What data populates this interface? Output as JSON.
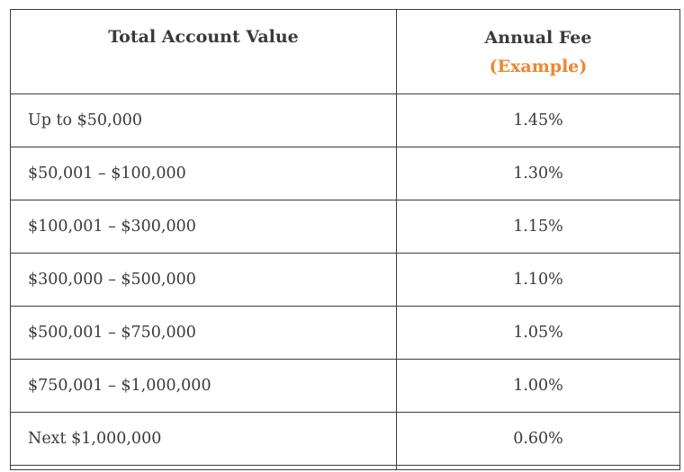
{
  "table": {
    "headers": {
      "account_value": "Total Account Value",
      "annual_fee": "Annual Fee",
      "annual_fee_note": "(Example)"
    },
    "accent_color": "#f0852d",
    "rows": [
      {
        "range": "Up to $50,000",
        "fee": "1.45%"
      },
      {
        "range": "$50,001 – $100,000",
        "fee": "1.30%"
      },
      {
        "range": "$100,001 – $300,000",
        "fee": "1.15%"
      },
      {
        "range": "$300,000 – $500,000",
        "fee": "1.10%"
      },
      {
        "range": "$500,001 – $750,000",
        "fee": "1.05%"
      },
      {
        "range": "$750,001 – $1,000,000",
        "fee": "1.00%"
      },
      {
        "range": "Next $1,000,000",
        "fee": "0.60%"
      }
    ]
  }
}
